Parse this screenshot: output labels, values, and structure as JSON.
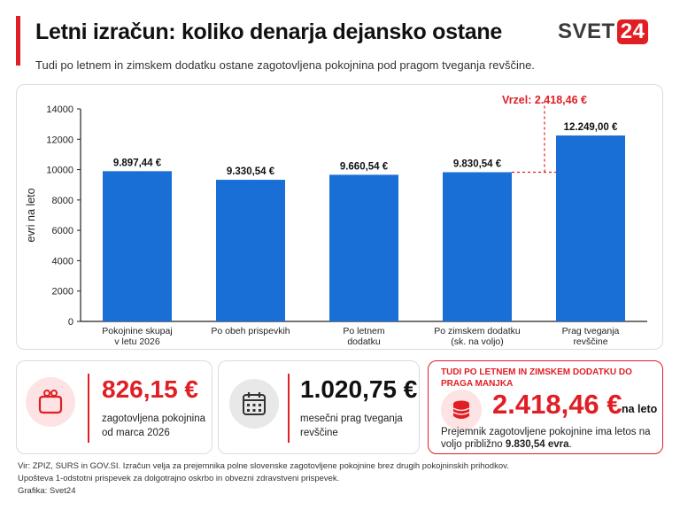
{
  "header": {
    "title": "Letni izračun: koliko denarja dejansko ostane",
    "subtitle": "Tudi po letnem in zimskem dodatku ostane zagotovljena pokojnina pod pragom tveganja revščine.",
    "logo_left": "SVET",
    "logo_right": "24"
  },
  "colors": {
    "accent": "#e01e24",
    "bar": "#1a6fd6",
    "dark": "#111111"
  },
  "chart_data": {
    "type": "bar",
    "categories": [
      [
        "Pokojnine skupaj",
        "v letu 2026"
      ],
      [
        "Po obeh prispevkih"
      ],
      [
        "Po letnem",
        "dodatku"
      ],
      [
        "Po zimskem dodatku",
        "(sk. na voljo)"
      ],
      [
        "Prag tveganja",
        "revščine"
      ]
    ],
    "values": [
      9897.44,
      9330.54,
      9660.54,
      9830.54,
      12249.0
    ],
    "value_labels": [
      "9.897,44 €",
      "9.330,54 €",
      "9.660,54 €",
      "9.830,54 €",
      "12.249,00 €"
    ],
    "ylabel": "evri na leto",
    "ylim": [
      0,
      14000
    ],
    "yticks": [
      0,
      2000,
      4000,
      6000,
      8000,
      10000,
      12000,
      14000
    ],
    "gap_annotation": "Vrzel: 2.418,46 €",
    "grid": false
  },
  "stats": {
    "pension": {
      "value": "826,15 €",
      "label": "zagotovljena pokojnina od marca 2026",
      "icon": "purse-icon"
    },
    "threshold": {
      "value": "1.020,75 €",
      "label": "mesečni prag tveganja revščine",
      "icon": "calendar-icon"
    },
    "gap": {
      "heading": "TUDI PO LETNEM IN ZIMSKEM DODATKU DO PRAGA MANJKA",
      "value": "2.418,46 €",
      "unit": "na leto",
      "note_prefix": "Prejemnik zagotovljene pokojnine ima letos na voljo približno ",
      "note_bold": "9.830,54 evra",
      "note_suffix": ".",
      "icon": "coins-icon"
    }
  },
  "footer": {
    "line1": "Vir: ZPIZ, SURS in GOV.SI.  Izračun velja za prejemnika polne slovenske zagotovljene pokojnine brez drugih pokojninskih prihodkov.",
    "line2": "Upošteva 1-odstotni prispevek za dolgotrajno oskrbo in obvezni zdravstveni prispevek.",
    "line3": "Grafika: Svet24"
  }
}
